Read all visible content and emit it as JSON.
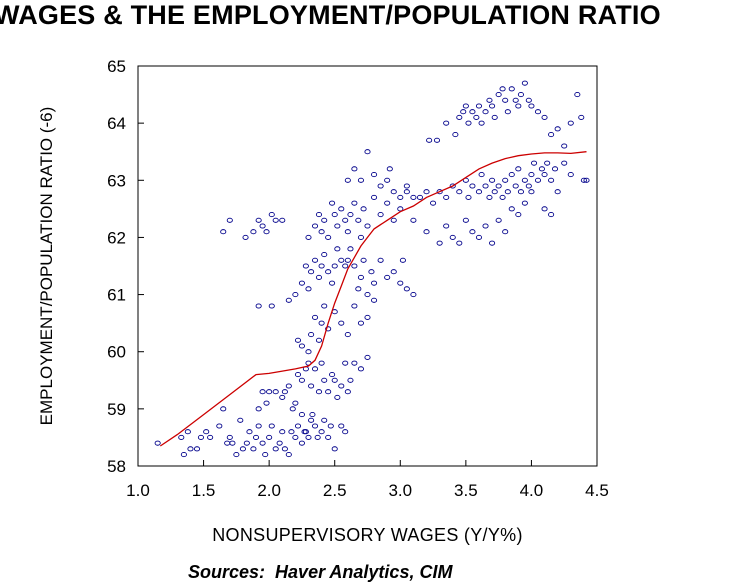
{
  "chart_data": {
    "type": "scatter",
    "title": "WAGES & THE EMPLOYMENT/POPULATION RATIO",
    "xlabel": "NONSUPERVISORY WAGES (Y/Y%)",
    "ylabel": "EMPLOYMENT/POPULATION RATIO (-6)",
    "xlim": [
      1.0,
      4.5
    ],
    "ylim": [
      58,
      65
    ],
    "xticks": [
      "1.0",
      "1.5",
      "2.0",
      "2.5",
      "3.0",
      "3.5",
      "4.0",
      "4.5"
    ],
    "yticks": [
      "58",
      "59",
      "60",
      "61",
      "62",
      "63",
      "64",
      "65"
    ],
    "grid": false,
    "series": [
      {
        "type": "scatter",
        "marker": "circle",
        "color": "#00008B",
        "points": [
          [
            1.15,
            58.4
          ],
          [
            1.33,
            58.5
          ],
          [
            1.35,
            58.2
          ],
          [
            1.38,
            58.6
          ],
          [
            1.4,
            58.3
          ],
          [
            1.45,
            58.3
          ],
          [
            1.48,
            58.5
          ],
          [
            1.52,
            58.6
          ],
          [
            1.55,
            58.5
          ],
          [
            1.62,
            58.7
          ],
          [
            1.65,
            59.0
          ],
          [
            1.68,
            58.4
          ],
          [
            1.7,
            58.5
          ],
          [
            1.72,
            58.4
          ],
          [
            1.75,
            58.2
          ],
          [
            1.78,
            58.8
          ],
          [
            1.8,
            58.3
          ],
          [
            1.83,
            58.4
          ],
          [
            1.85,
            58.6
          ],
          [
            1.88,
            58.3
          ],
          [
            1.9,
            58.5
          ],
          [
            1.92,
            58.7
          ],
          [
            1.95,
            58.4
          ],
          [
            1.97,
            58.2
          ],
          [
            2.0,
            58.5
          ],
          [
            2.02,
            58.7
          ],
          [
            2.05,
            58.3
          ],
          [
            2.08,
            58.4
          ],
          [
            2.1,
            58.6
          ],
          [
            2.12,
            58.3
          ],
          [
            2.15,
            58.2
          ],
          [
            2.17,
            58.6
          ],
          [
            2.2,
            58.5
          ],
          [
            2.22,
            58.7
          ],
          [
            2.25,
            58.9
          ],
          [
            2.27,
            58.6
          ],
          [
            2.3,
            58.5
          ],
          [
            2.32,
            58.8
          ],
          [
            2.35,
            58.7
          ],
          [
            2.37,
            58.5
          ],
          [
            2.4,
            58.6
          ],
          [
            2.42,
            58.8
          ],
          [
            2.45,
            58.5
          ],
          [
            2.47,
            58.7
          ],
          [
            2.5,
            58.3
          ],
          [
            2.55,
            58.7
          ],
          [
            2.58,
            58.6
          ],
          [
            2.25,
            58.4
          ],
          [
            2.28,
            58.6
          ],
          [
            2.33,
            58.9
          ],
          [
            1.92,
            59.0
          ],
          [
            1.95,
            59.3
          ],
          [
            1.98,
            59.1
          ],
          [
            2.0,
            59.3
          ],
          [
            2.05,
            59.3
          ],
          [
            2.1,
            59.2
          ],
          [
            2.12,
            59.3
          ],
          [
            2.15,
            59.4
          ],
          [
            2.18,
            59.0
          ],
          [
            2.2,
            59.1
          ],
          [
            2.22,
            59.6
          ],
          [
            2.25,
            59.5
          ],
          [
            2.28,
            59.7
          ],
          [
            2.3,
            59.8
          ],
          [
            2.32,
            59.4
          ],
          [
            2.35,
            59.7
          ],
          [
            2.38,
            59.3
          ],
          [
            2.4,
            59.8
          ],
          [
            2.42,
            59.5
          ],
          [
            2.45,
            59.3
          ],
          [
            2.48,
            59.6
          ],
          [
            2.5,
            59.5
          ],
          [
            2.52,
            59.2
          ],
          [
            2.55,
            59.4
          ],
          [
            2.58,
            59.8
          ],
          [
            2.6,
            59.3
          ],
          [
            2.62,
            59.5
          ],
          [
            2.65,
            59.8
          ],
          [
            2.7,
            59.7
          ],
          [
            2.75,
            59.9
          ],
          [
            2.22,
            60.2
          ],
          [
            2.25,
            60.1
          ],
          [
            2.3,
            60.0
          ],
          [
            2.32,
            60.3
          ],
          [
            2.35,
            60.6
          ],
          [
            2.38,
            60.2
          ],
          [
            2.4,
            60.5
          ],
          [
            2.42,
            60.8
          ],
          [
            2.45,
            60.4
          ],
          [
            2.5,
            60.7
          ],
          [
            2.55,
            60.5
          ],
          [
            2.6,
            60.3
          ],
          [
            2.65,
            60.8
          ],
          [
            2.7,
            60.5
          ],
          [
            2.75,
            60.6
          ],
          [
            2.8,
            60.9
          ],
          [
            1.92,
            60.8
          ],
          [
            2.02,
            60.8
          ],
          [
            2.15,
            60.9
          ],
          [
            2.2,
            61.0
          ],
          [
            2.25,
            61.2
          ],
          [
            2.28,
            61.5
          ],
          [
            2.3,
            61.1
          ],
          [
            2.32,
            61.4
          ],
          [
            2.35,
            61.6
          ],
          [
            2.38,
            61.3
          ],
          [
            2.4,
            61.5
          ],
          [
            2.42,
            61.7
          ],
          [
            2.45,
            61.4
          ],
          [
            2.48,
            61.2
          ],
          [
            2.5,
            61.5
          ],
          [
            2.52,
            61.8
          ],
          [
            2.55,
            61.6
          ],
          [
            2.58,
            61.5
          ],
          [
            2.6,
            61.6
          ],
          [
            2.62,
            61.8
          ],
          [
            2.65,
            61.5
          ],
          [
            2.68,
            61.1
          ],
          [
            2.7,
            61.3
          ],
          [
            2.72,
            61.6
          ],
          [
            2.75,
            61.0
          ],
          [
            2.78,
            61.4
          ],
          [
            2.8,
            61.2
          ],
          [
            2.85,
            61.6
          ],
          [
            2.9,
            61.3
          ],
          [
            2.95,
            61.4
          ],
          [
            3.0,
            61.2
          ],
          [
            3.02,
            61.6
          ],
          [
            3.05,
            61.1
          ],
          [
            3.1,
            61.0
          ],
          [
            1.65,
            62.1
          ],
          [
            1.7,
            62.3
          ],
          [
            1.82,
            62.0
          ],
          [
            1.88,
            62.1
          ],
          [
            1.92,
            62.3
          ],
          [
            1.95,
            62.2
          ],
          [
            1.98,
            62.1
          ],
          [
            2.02,
            62.4
          ],
          [
            2.05,
            62.3
          ],
          [
            2.1,
            62.3
          ],
          [
            2.3,
            62.0
          ],
          [
            2.35,
            62.2
          ],
          [
            2.38,
            62.4
          ],
          [
            2.4,
            62.1
          ],
          [
            2.42,
            62.3
          ],
          [
            2.45,
            62.0
          ],
          [
            2.48,
            62.6
          ],
          [
            2.5,
            62.4
          ],
          [
            2.52,
            62.2
          ],
          [
            2.55,
            62.5
          ],
          [
            2.58,
            62.3
          ],
          [
            2.6,
            62.1
          ],
          [
            2.62,
            62.4
          ],
          [
            2.65,
            62.6
          ],
          [
            2.68,
            62.3
          ],
          [
            2.7,
            62.0
          ],
          [
            2.72,
            62.5
          ],
          [
            2.75,
            62.2
          ],
          [
            2.8,
            62.7
          ],
          [
            2.85,
            62.4
          ],
          [
            2.9,
            62.6
          ],
          [
            2.95,
            62.3
          ],
          [
            3.0,
            62.5
          ],
          [
            3.05,
            62.8
          ],
          [
            3.1,
            62.3
          ],
          [
            3.2,
            62.1
          ],
          [
            3.3,
            61.9
          ],
          [
            3.35,
            62.2
          ],
          [
            3.4,
            62.0
          ],
          [
            3.45,
            61.9
          ],
          [
            3.5,
            62.3
          ],
          [
            3.55,
            62.1
          ],
          [
            3.6,
            62.0
          ],
          [
            3.65,
            62.2
          ],
          [
            3.7,
            61.9
          ],
          [
            3.75,
            62.3
          ],
          [
            3.8,
            62.1
          ],
          [
            3.85,
            62.5
          ],
          [
            3.9,
            62.4
          ],
          [
            3.95,
            62.6
          ],
          [
            4.0,
            62.8
          ],
          [
            4.1,
            62.5
          ],
          [
            4.15,
            62.4
          ],
          [
            2.6,
            63.0
          ],
          [
            2.65,
            63.2
          ],
          [
            2.7,
            63.0
          ],
          [
            2.75,
            63.5
          ],
          [
            2.8,
            63.1
          ],
          [
            2.85,
            62.9
          ],
          [
            2.9,
            63.0
          ],
          [
            2.92,
            63.2
          ],
          [
            2.95,
            62.8
          ],
          [
            3.0,
            62.7
          ],
          [
            3.05,
            62.9
          ],
          [
            3.1,
            62.7
          ],
          [
            3.15,
            62.7
          ],
          [
            3.2,
            62.8
          ],
          [
            3.25,
            62.6
          ],
          [
            3.3,
            62.8
          ],
          [
            3.35,
            62.7
          ],
          [
            3.4,
            62.9
          ],
          [
            3.45,
            62.8
          ],
          [
            3.5,
            63.0
          ],
          [
            3.52,
            62.7
          ],
          [
            3.55,
            62.9
          ],
          [
            3.6,
            62.8
          ],
          [
            3.62,
            63.1
          ],
          [
            3.65,
            62.9
          ],
          [
            3.68,
            62.7
          ],
          [
            3.7,
            63.0
          ],
          [
            3.72,
            62.8
          ],
          [
            3.75,
            62.9
          ],
          [
            3.78,
            62.7
          ],
          [
            3.8,
            63.0
          ],
          [
            3.82,
            62.8
          ],
          [
            3.85,
            63.1
          ],
          [
            3.88,
            62.9
          ],
          [
            3.9,
            63.2
          ],
          [
            3.92,
            62.8
          ],
          [
            3.95,
            63.0
          ],
          [
            3.98,
            62.9
          ],
          [
            4.0,
            63.1
          ],
          [
            4.02,
            63.3
          ],
          [
            4.05,
            63.0
          ],
          [
            4.08,
            63.2
          ],
          [
            4.1,
            63.1
          ],
          [
            4.12,
            63.3
          ],
          [
            4.15,
            63.0
          ],
          [
            4.18,
            63.2
          ],
          [
            4.2,
            62.8
          ],
          [
            4.25,
            63.3
          ],
          [
            4.3,
            63.1
          ],
          [
            4.4,
            63.0
          ],
          [
            4.42,
            63.0
          ],
          [
            3.22,
            63.7
          ],
          [
            3.28,
            63.7
          ],
          [
            3.35,
            64.0
          ],
          [
            3.42,
            63.8
          ],
          [
            3.45,
            64.1
          ],
          [
            3.48,
            64.2
          ],
          [
            3.5,
            64.3
          ],
          [
            3.52,
            64.0
          ],
          [
            3.55,
            64.2
          ],
          [
            3.58,
            64.1
          ],
          [
            3.6,
            64.3
          ],
          [
            3.62,
            64.0
          ],
          [
            3.65,
            64.2
          ],
          [
            3.68,
            64.4
          ],
          [
            3.7,
            64.3
          ],
          [
            3.72,
            64.1
          ],
          [
            3.75,
            64.5
          ],
          [
            3.78,
            64.6
          ],
          [
            3.8,
            64.4
          ],
          [
            3.82,
            64.2
          ],
          [
            3.85,
            64.6
          ],
          [
            3.88,
            64.4
          ],
          [
            3.9,
            64.3
          ],
          [
            3.92,
            64.5
          ],
          [
            3.95,
            64.7
          ],
          [
            3.98,
            64.4
          ],
          [
            4.0,
            64.3
          ],
          [
            4.05,
            64.2
          ],
          [
            4.1,
            64.1
          ],
          [
            4.15,
            63.8
          ],
          [
            4.2,
            63.9
          ],
          [
            4.25,
            63.6
          ],
          [
            4.3,
            64.0
          ],
          [
            4.35,
            64.5
          ],
          [
            4.38,
            64.1
          ]
        ]
      },
      {
        "type": "line",
        "name": "",
        "color": "#CC0000",
        "points": [
          [
            1.17,
            58.35
          ],
          [
            1.3,
            58.55
          ],
          [
            1.5,
            58.9
          ],
          [
            1.7,
            59.25
          ],
          [
            1.9,
            59.6
          ],
          [
            2.0,
            59.62
          ],
          [
            2.1,
            59.66
          ],
          [
            2.2,
            59.7
          ],
          [
            2.3,
            59.75
          ],
          [
            2.35,
            59.85
          ],
          [
            2.4,
            60.1
          ],
          [
            2.45,
            60.5
          ],
          [
            2.5,
            60.85
          ],
          [
            2.55,
            61.15
          ],
          [
            2.6,
            61.45
          ],
          [
            2.65,
            61.65
          ],
          [
            2.7,
            61.85
          ],
          [
            2.75,
            62.0
          ],
          [
            2.8,
            62.15
          ],
          [
            2.9,
            62.3
          ],
          [
            3.0,
            62.45
          ],
          [
            3.1,
            62.55
          ],
          [
            3.2,
            62.7
          ],
          [
            3.3,
            62.8
          ],
          [
            3.4,
            62.9
          ],
          [
            3.5,
            63.05
          ],
          [
            3.6,
            63.2
          ],
          [
            3.7,
            63.3
          ],
          [
            3.8,
            63.38
          ],
          [
            3.9,
            63.43
          ],
          [
            4.0,
            63.46
          ],
          [
            4.1,
            63.48
          ],
          [
            4.2,
            63.48
          ],
          [
            4.3,
            63.47
          ],
          [
            4.42,
            63.5
          ]
        ]
      }
    ]
  },
  "source_label": "Sources:",
  "source_text": "Haver Analytics, CIM"
}
